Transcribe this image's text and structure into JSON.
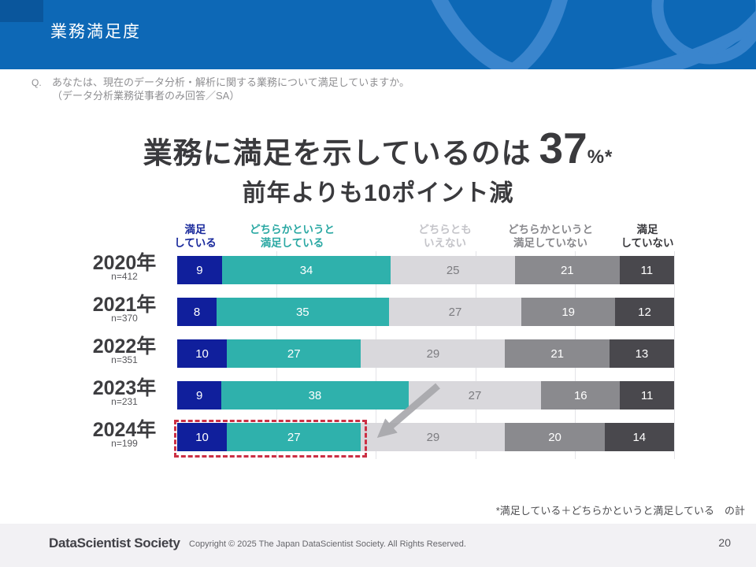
{
  "slide": {
    "title": "業務満足度",
    "page_number": "20"
  },
  "question": {
    "label": "Q.",
    "line1": "あなたは、現在のデータ分析・解析に関する業務について満足していますか。",
    "line2": "（データ分析業務従事者のみ回答／SA）"
  },
  "headline": {
    "prefix": "業務に満足を示しているのは",
    "value": "37",
    "unit": "%*",
    "sub": "前年よりも10ポイント減"
  },
  "footnote": "*満足している＋どちらかというと満足している　の計",
  "footer": {
    "logo": "DataScientist Society",
    "copyright": "Copyright © 2025  The Japan DataScientist Society. All Rights Reserved."
  },
  "colors": {
    "banner_blue": "#0d68b6",
    "banner_deco_blue": "#3a85cd",
    "banner_corner_blue": "#0a569c",
    "highlight_red": "#cb2f44",
    "arrow_gray": "#a7a7ab"
  },
  "chart_data": {
    "type": "bar",
    "stacked": true,
    "orientation": "horizontal",
    "unit": "%",
    "xlim": [
      0,
      100
    ],
    "gridlines_percent": [
      20,
      40,
      60,
      80,
      100
    ],
    "categories": [
      "2020年",
      "2021年",
      "2022年",
      "2023年",
      "2024年"
    ],
    "sample_sizes": [
      "n=412",
      "n=370",
      "n=351",
      "n=231",
      "n=199"
    ],
    "series": [
      {
        "name": "満足している",
        "label_lines": "満足\nしている",
        "color": "#101f9c",
        "header_color": "#1a2a9c",
        "values": [
          9,
          8,
          10,
          9,
          10
        ]
      },
      {
        "name": "どちらかというと満足している",
        "label_lines": "どちらかというと\n満足している",
        "color": "#2fb1ac",
        "header_color": "#2aa8a3",
        "values": [
          34,
          35,
          27,
          38,
          27
        ]
      },
      {
        "name": "どちらともいえない",
        "label_lines": "どちらとも\nいえない",
        "color": "#d9d8dc",
        "header_color": "#c4c4c9",
        "values": [
          25,
          27,
          29,
          27,
          29
        ]
      },
      {
        "name": "どちらかというと満足していない",
        "label_lines": "どちらかというと\n満足していない",
        "color": "#8a8a8e",
        "header_color": "#88888c",
        "values": [
          21,
          19,
          21,
          16,
          20
        ]
      },
      {
        "name": "満足していない",
        "label_lines": "満足\nしていない",
        "color": "#49484d",
        "header_color": "#38383c",
        "values": [
          11,
          12,
          13,
          11,
          14
        ]
      }
    ]
  }
}
